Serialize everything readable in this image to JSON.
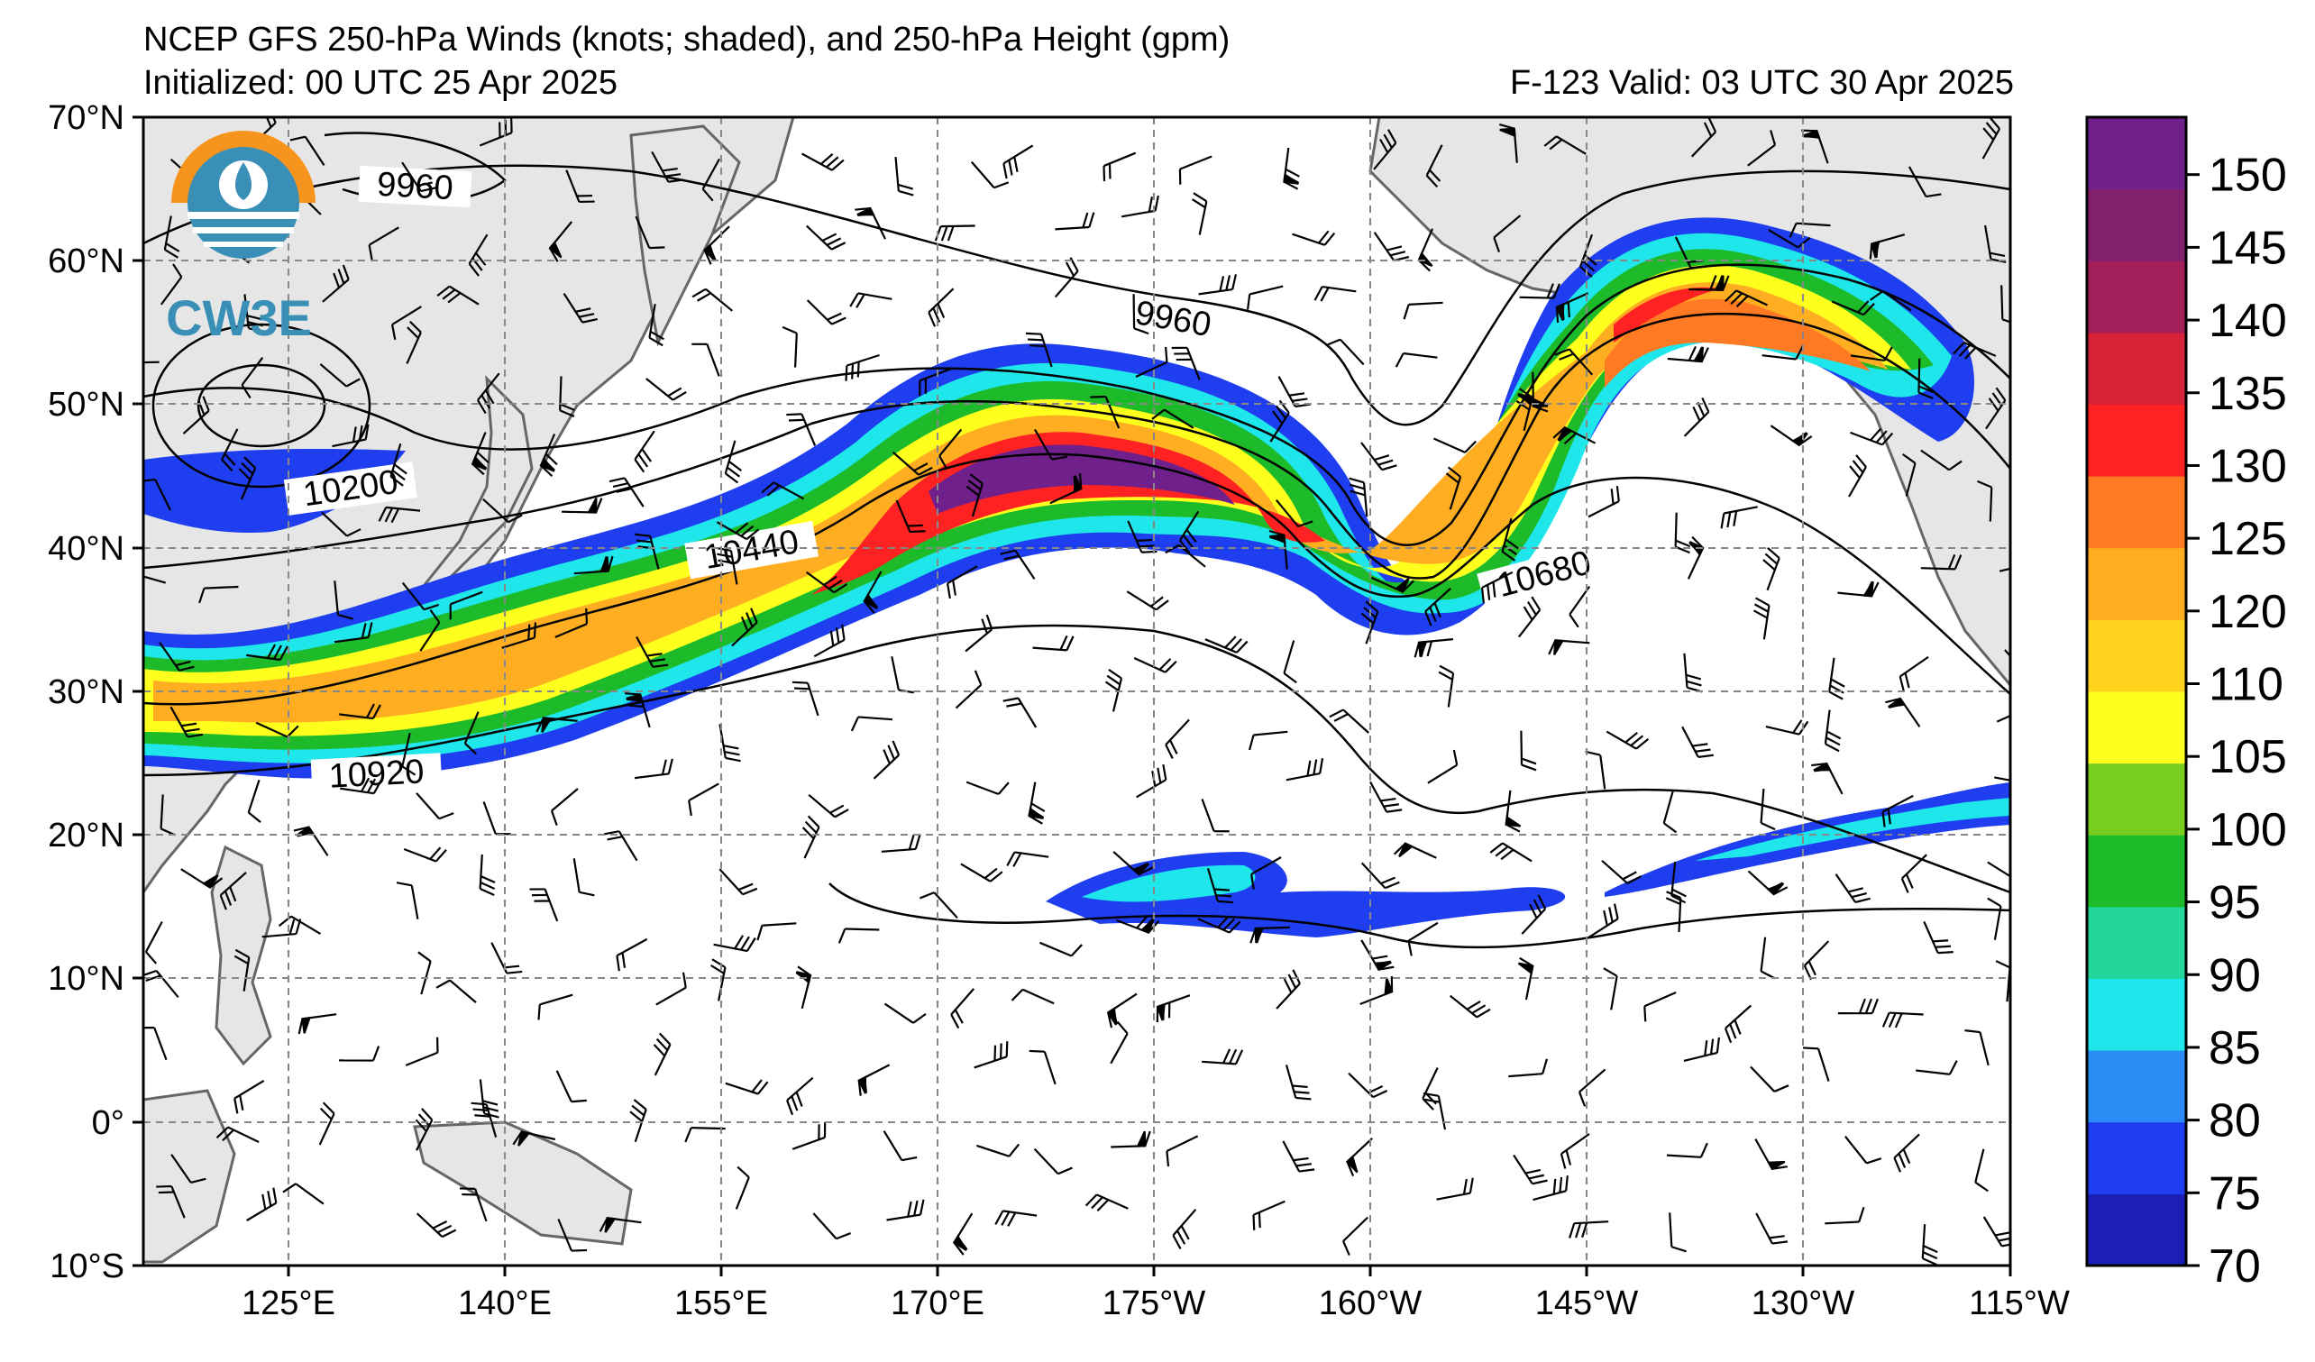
{
  "header": {
    "title": "NCEP GFS 250-hPa Winds (knots; shaded), and 250-hPa Height (gpm)",
    "initialized": "Initialized: 00 UTC 25 Apr 2025",
    "valid": "F-123  Valid: 03 UTC 30 Apr 2025"
  },
  "logo": {
    "text": "CW3E",
    "icon": "water-drop-globe-icon"
  },
  "axes": {
    "lat_labels": [
      "70°N",
      "60°N",
      "50°N",
      "40°N",
      "30°N",
      "20°N",
      "10°N",
      "0°",
      "10°S"
    ],
    "lon_labels": [
      "125°E",
      "140°E",
      "155°E",
      "170°E",
      "175°W",
      "160°W",
      "145°W",
      "130°W",
      "115°W"
    ]
  },
  "contours": {
    "labels": [
      "9960",
      "9960",
      "10200",
      "10440",
      "10680",
      "10920"
    ]
  },
  "colorbar": {
    "ticks": [
      "150",
      "145",
      "140",
      "135",
      "130",
      "125",
      "120",
      "110",
      "105",
      "100",
      "95",
      "90",
      "85",
      "80",
      "75",
      "70"
    ],
    "colors": [
      "#1c1fb6",
      "#1e3ef0",
      "#2a8cf4",
      "#1ee6ea",
      "#22d69c",
      "#1dbb2a",
      "#79cd1e",
      "#ffff1e",
      "#ffd21e",
      "#ffae22",
      "#ff7a22",
      "#ff2222",
      "#d62236",
      "#a31f5a",
      "#82206e",
      "#6f208a"
    ]
  },
  "chart_data": {
    "type": "heatmap",
    "title": "NCEP GFS 250-hPa Winds (knots; shaded), and 250-hPa Height (gpm)",
    "colorbar_range": [
      70,
      155
    ],
    "lat_range": [
      -10,
      70
    ],
    "lon_range": [
      "115°E",
      "115°W"
    ]
  }
}
